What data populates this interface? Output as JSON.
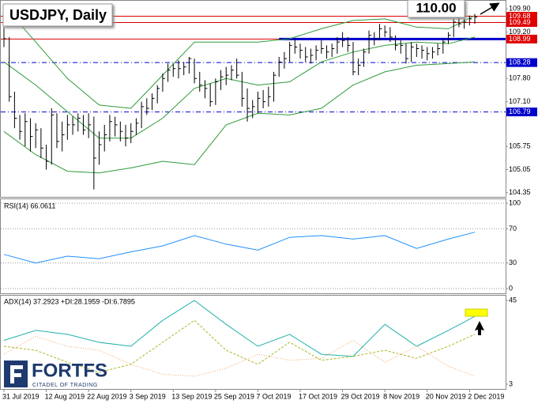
{
  "chart_data": [
    {
      "type": "ohlc",
      "title": "USDJPY, Daily",
      "annotation": "110.00",
      "categories": [
        "31 Jul 2019",
        null,
        null,
        null,
        null,
        null,
        null,
        null,
        "12 Aug 2019",
        null,
        null,
        null,
        null,
        null,
        null,
        null,
        "22 Aug 2019",
        null,
        null,
        null,
        null,
        null,
        null,
        null,
        "3 Sep 2019",
        null,
        null,
        null,
        null,
        null,
        null,
        null,
        "13 Sep 2019",
        null,
        null,
        null,
        null,
        null,
        null,
        null,
        "25 Sep 2019",
        null,
        null,
        null,
        null,
        null,
        null,
        null,
        "7 Oct 2019",
        null,
        null,
        null,
        null,
        null,
        null,
        null,
        "17 Oct 2019",
        null,
        null,
        null,
        null,
        null,
        null,
        null,
        "29 Oct 2019",
        null,
        null,
        null,
        null,
        null,
        null,
        null,
        "8 Nov 2019",
        null,
        null,
        null,
        null,
        null,
        null,
        null,
        "20 Nov 2019",
        null,
        null,
        null,
        null,
        null,
        null,
        null,
        "2 Dec 2019",
        null
      ],
      "close": [
        109.0,
        107.25,
        106.6,
        106.2,
        106.5,
        106.05,
        106.25,
        105.7,
        105.3,
        106.7,
        105.9,
        106.1,
        106.4,
        106.4,
        106.6,
        106.25,
        106.4,
        105.4,
        105.8,
        106.1,
        106.5,
        106.4,
        106.2,
        106.0,
        106.2,
        106.45,
        106.95,
        106.9,
        107.2,
        107.5,
        107.8,
        108.05,
        108.1,
        108.1,
        108.15,
        108.4,
        107.8,
        107.6,
        107.5,
        107.1,
        107.7,
        107.85,
        107.9,
        108.05,
        107.9,
        107.2,
        106.9,
        106.95,
        107.2,
        107.1,
        107.25,
        107.9,
        108.3,
        108.4,
        108.8,
        108.75,
        108.65,
        108.45,
        108.5,
        108.65,
        108.7,
        108.6,
        108.7,
        108.9,
        108.95,
        108.8,
        108.0,
        108.2,
        108.6,
        109.1,
        109.0,
        109.3,
        109.2,
        109.05,
        108.8,
        108.8,
        108.4,
        108.75,
        108.7,
        108.65,
        108.55,
        108.6,
        108.7,
        108.9,
        109.1,
        109.5,
        109.45,
        109.5,
        109.6,
        109.65
      ],
      "high": [
        109.35,
        109.05,
        107.4,
        106.7,
        106.75,
        106.6,
        106.45,
        106.3,
        105.8,
        106.9,
        106.75,
        106.5,
        106.7,
        106.65,
        106.75,
        106.7,
        106.75,
        106.65,
        106.2,
        106.4,
        106.7,
        106.65,
        106.5,
        106.4,
        106.45,
        106.6,
        107.1,
        107.2,
        107.35,
        107.6,
        107.95,
        108.25,
        108.25,
        108.35,
        108.3,
        108.45,
        108.4,
        108.0,
        107.75,
        107.65,
        107.8,
        108.05,
        108.15,
        108.2,
        108.4,
        108.0,
        107.5,
        107.15,
        107.4,
        107.45,
        107.55,
        108.0,
        108.45,
        108.6,
        108.9,
        109.0,
        108.85,
        108.75,
        108.7,
        108.8,
        108.95,
        108.8,
        108.85,
        109.05,
        109.2,
        109.05,
        108.9,
        108.4,
        108.7,
        109.25,
        109.2,
        109.45,
        109.4,
        109.35,
        109.1,
        108.95,
        108.85,
        108.9,
        108.85,
        108.8,
        108.75,
        108.75,
        108.85,
        109.0,
        109.2,
        109.6,
        109.65,
        109.6,
        109.7,
        109.75
      ],
      "low": [
        108.75,
        107.1,
        106.3,
        105.95,
        105.75,
        105.6,
        105.7,
        105.4,
        105.05,
        105.2,
        105.7,
        105.6,
        105.95,
        106.1,
        106.2,
        106.1,
        106.0,
        104.45,
        105.2,
        105.6,
        105.9,
        106.05,
        105.9,
        105.75,
        105.85,
        106.1,
        106.3,
        106.7,
        106.85,
        107.05,
        107.4,
        107.7,
        107.85,
        107.8,
        107.9,
        107.95,
        107.65,
        107.4,
        107.2,
        106.95,
        107.0,
        107.45,
        107.6,
        107.75,
        107.8,
        106.95,
        106.5,
        106.6,
        106.75,
        106.9,
        106.95,
        107.1,
        107.85,
        108.1,
        108.3,
        108.55,
        108.4,
        108.3,
        108.25,
        108.35,
        108.55,
        108.4,
        108.45,
        108.55,
        108.75,
        108.6,
        107.9,
        107.9,
        108.15,
        108.55,
        108.8,
        108.95,
        109.05,
        108.9,
        108.65,
        108.55,
        108.25,
        108.3,
        108.45,
        108.4,
        108.35,
        108.4,
        108.5,
        108.55,
        108.85,
        109.05,
        109.35,
        109.3,
        109.4,
        109.45
      ],
      "color": "#000000",
      "series": [
        {
          "color": "#2e9a3a",
          "x": [
            0,
            6,
            12,
            18,
            24,
            30,
            36,
            42,
            48,
            54,
            60,
            66,
            72,
            78,
            84,
            89
          ],
          "values": [
            110.0,
            108.9,
            107.8,
            107.0,
            106.9,
            107.9,
            108.9,
            108.9,
            108.9,
            109.0,
            109.3,
            109.55,
            109.6,
            109.35,
            109.3,
            109.7
          ]
        },
        {
          "color": "#2e9a3a",
          "x": [
            0,
            6,
            12,
            18,
            24,
            30,
            36,
            42,
            48,
            54,
            60,
            66,
            72,
            78,
            84,
            89
          ],
          "values": [
            108.3,
            107.6,
            106.8,
            106.0,
            106.0,
            106.6,
            107.5,
            107.8,
            107.6,
            107.7,
            108.3,
            108.6,
            108.8,
            108.9,
            108.85,
            109.05
          ]
        },
        {
          "color": "#2e9a3a",
          "x": [
            0,
            6,
            12,
            18,
            24,
            30,
            36,
            42,
            48,
            54,
            60,
            66,
            72,
            78,
            84,
            89
          ],
          "values": [
            106.2,
            105.5,
            105.0,
            104.95,
            105.1,
            105.3,
            105.2,
            106.4,
            106.75,
            106.7,
            106.9,
            107.6,
            108.0,
            108.2,
            108.25,
            108.3
          ]
        }
      ],
      "levels": [
        {
          "value": 109.68,
          "color": "#e00000",
          "style": "solid"
        },
        {
          "value": 109.49,
          "color": "#e00000",
          "style": "solid"
        },
        {
          "value": 108.99,
          "color": "#e00000",
          "style": "solid"
        },
        {
          "value": 108.28,
          "color": "#0000cd",
          "style": "dashdot"
        },
        {
          "value": 106.79,
          "color": "#0000cd",
          "style": "dashdot"
        }
      ],
      "support_line": {
        "value": 108.99,
        "x_start": 52,
        "color": "#0000cd"
      },
      "ylim": [
        104.25,
        110.05
      ],
      "yticks": [
        {
          "value": 109.9,
          "label": "109.90"
        },
        {
          "value": 109.2,
          "label": "109.20"
        },
        {
          "value": 107.8,
          "label": "107.80"
        },
        {
          "value": 107.1,
          "label": "107.10"
        },
        105.75,
        105.05,
        104.35
      ]
    },
    {
      "type": "line",
      "title": "RSI(14) 66.0611",
      "xlim": [
        0,
        89
      ],
      "series": [
        {
          "color": "#1e90ff",
          "style": "solid",
          "x": [
            0,
            6,
            12,
            18,
            24,
            30,
            36,
            42,
            48,
            54,
            60,
            66,
            72,
            78,
            84,
            89
          ],
          "values": [
            40,
            30,
            38,
            35,
            43,
            50,
            62,
            52,
            45,
            60,
            62,
            58,
            62,
            47,
            58,
            66
          ]
        }
      ],
      "ylim": [
        0,
        100
      ],
      "yticks": [
        100,
        70,
        30,
        0
      ],
      "grid": true
    },
    {
      "type": "line",
      "title": "ADX(14) 37.2923 +DI:28.1959 -DI:6.7895",
      "xlim": [
        0,
        89
      ],
      "series": [
        {
          "color": "#20b2aa",
          "style": "solid",
          "x": [
            0,
            6,
            12,
            18,
            24,
            30,
            36,
            42,
            48,
            54,
            60,
            66,
            72,
            78,
            84,
            89
          ],
          "values": [
            25,
            30,
            28,
            24,
            22,
            35,
            45,
            33,
            22,
            28,
            18,
            17,
            33,
            22,
            30,
            37
          ]
        },
        {
          "color": "#a8b820",
          "style": "dashed",
          "x": [
            0,
            6,
            12,
            18,
            24,
            30,
            36,
            42,
            48,
            54,
            60,
            66,
            72,
            78,
            84,
            89
          ],
          "values": [
            22,
            20,
            14,
            9,
            13,
            24,
            35,
            20,
            13,
            24,
            15,
            17,
            20,
            16,
            22,
            28
          ]
        },
        {
          "color": "#f4a460",
          "style": "dotted",
          "x": [
            0,
            6,
            12,
            18,
            24,
            30,
            36,
            42,
            48,
            54,
            60,
            66,
            72,
            78,
            84,
            89
          ],
          "values": [
            18,
            27,
            22,
            20,
            13,
            8,
            7,
            11,
            18,
            15,
            16,
            25,
            14,
            22,
            12,
            7
          ]
        }
      ],
      "ylim": [
        3,
        45
      ],
      "yticks": [
        45,
        3
      ],
      "grid": false
    }
  ],
  "brand": {
    "name": "FORTFS",
    "tagline": "CITADEL OF TRADING"
  }
}
